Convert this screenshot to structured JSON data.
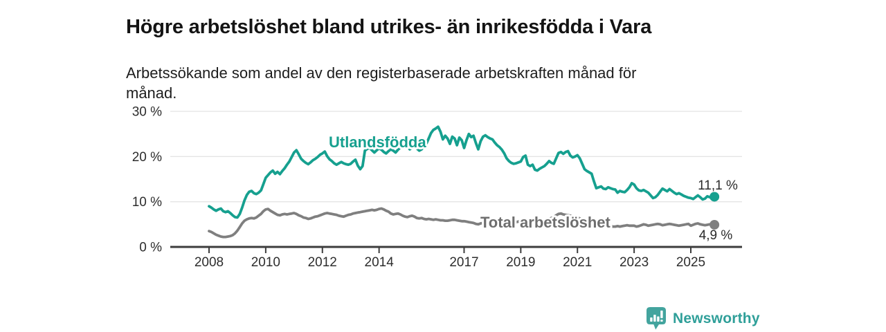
{
  "header": {
    "title": "Högre arbetslöshet bland utrikes- än inrikesfödda i Vara",
    "subtitle_line1": "Arbetssökande som andel av den registerbaserade arbetskraften månad för",
    "subtitle_line2": "månad."
  },
  "chart_data": {
    "type": "line",
    "x_start_year": 2008,
    "x_step_months": 1,
    "xlabel": "",
    "ylabel": "",
    "ylim": [
      0,
      30
    ],
    "grid": "horizontal",
    "legend_position": "inline-labels",
    "y_ticks": [
      {
        "value": 0,
        "label": "0 %"
      },
      {
        "value": 10,
        "label": "10 %"
      },
      {
        "value": 20,
        "label": "20 %"
      },
      {
        "value": 30,
        "label": "30 %"
      }
    ],
    "x_ticks": [
      {
        "value": 2008,
        "label": "2008"
      },
      {
        "value": 2010,
        "label": "2010"
      },
      {
        "value": 2012,
        "label": "2012"
      },
      {
        "value": 2014,
        "label": "2014"
      },
      {
        "value": 2017,
        "label": "2017"
      },
      {
        "value": 2019,
        "label": "2019"
      },
      {
        "value": 2021,
        "label": "2021"
      },
      {
        "value": 2023,
        "label": "2023"
      },
      {
        "value": 2025,
        "label": "2025"
      }
    ],
    "series": [
      {
        "name": "Total arbetslöshet",
        "color": "#7f7f7f",
        "label_color": "#6e6e6e",
        "end_label": "4,9 %",
        "end_value": 4.9,
        "values": [
          3.5,
          3.3,
          3.0,
          2.7,
          2.5,
          2.3,
          2.2,
          2.2,
          2.3,
          2.4,
          2.6,
          3.0,
          3.6,
          4.4,
          5.2,
          5.8,
          6.1,
          6.3,
          6.4,
          6.3,
          6.5,
          6.9,
          7.3,
          7.9,
          8.3,
          8.4,
          8.0,
          7.7,
          7.4,
          7.1,
          7.0,
          7.2,
          7.3,
          7.2,
          7.3,
          7.4,
          7.5,
          7.3,
          7.0,
          6.8,
          6.5,
          6.4,
          6.2,
          6.3,
          6.5,
          6.7,
          6.8,
          7.0,
          7.2,
          7.4,
          7.5,
          7.4,
          7.3,
          7.2,
          7.1,
          6.9,
          6.8,
          6.7,
          6.9,
          7.1,
          7.2,
          7.4,
          7.5,
          7.6,
          7.7,
          7.8,
          7.9,
          8.0,
          8.1,
          8.2,
          8.1,
          8.2,
          8.4,
          8.5,
          8.3,
          8.0,
          7.8,
          7.4,
          7.2,
          7.3,
          7.4,
          7.2,
          6.9,
          6.7,
          6.6,
          6.8,
          6.9,
          6.7,
          6.4,
          6.3,
          6.4,
          6.2,
          6.1,
          6.2,
          6.1,
          6.0,
          6.1,
          6.0,
          5.9,
          5.9,
          5.8,
          5.8,
          5.9,
          6.0,
          6.0,
          5.9,
          5.8,
          5.7,
          5.7,
          5.6,
          5.5,
          5.4,
          5.3,
          5.1,
          5.0,
          5.2,
          5.3,
          5.4,
          5.4,
          5.3,
          5.4,
          5.5,
          5.4,
          5.3,
          5.2,
          5.1,
          5.1,
          5.2,
          5.3,
          5.4,
          5.5,
          5.6,
          5.7,
          5.8,
          5.7,
          5.6,
          5.5,
          5.6,
          5.5,
          5.6,
          5.7,
          5.8,
          5.9,
          6.0,
          6.2,
          6.4,
          6.6,
          7.0,
          7.3,
          7.4,
          7.2,
          7.1,
          7.0,
          6.9,
          6.8,
          6.7,
          6.5,
          6.3,
          6.1,
          5.9,
          5.7,
          5.5,
          5.3,
          5.1,
          4.9,
          4.8,
          4.7,
          4.6,
          4.6,
          4.5,
          4.6,
          4.5,
          4.5,
          4.6,
          4.5,
          4.6,
          4.7,
          4.8,
          4.7,
          4.7,
          4.7,
          4.5,
          4.6,
          4.8,
          5.0,
          4.9,
          4.7,
          4.8,
          4.9,
          5.0,
          5.1,
          5.0,
          4.8,
          4.9,
          5.0,
          5.1,
          5.0,
          4.9,
          4.8,
          4.7,
          4.8,
          4.9,
          5.0,
          5.1,
          4.7,
          4.9,
          5.1,
          5.2,
          5.0,
          4.9,
          4.8,
          4.9,
          5.0,
          4.9,
          4.9
        ]
      },
      {
        "name": "Utlandsfödda",
        "color": "#16a08f",
        "label_color": "#16a08f",
        "end_label": "11,1 %",
        "end_value": 11.1,
        "values": [
          9.0,
          8.7,
          8.3,
          8.0,
          8.3,
          8.5,
          7.9,
          7.7,
          7.9,
          7.5,
          7.0,
          6.6,
          6.5,
          7.3,
          8.7,
          10.3,
          11.5,
          12.2,
          12.4,
          11.9,
          11.7,
          12.0,
          12.5,
          13.9,
          15.3,
          15.9,
          16.5,
          16.9,
          16.2,
          16.6,
          16.1,
          16.8,
          17.4,
          18.2,
          18.9,
          19.9,
          20.9,
          21.4,
          20.5,
          19.5,
          19.0,
          18.6,
          18.3,
          18.7,
          19.2,
          19.5,
          19.9,
          20.4,
          20.7,
          21.1,
          20.1,
          19.4,
          19.0,
          18.5,
          18.2,
          18.5,
          18.8,
          18.5,
          18.3,
          18.2,
          18.4,
          18.9,
          19.3,
          18.0,
          17.2,
          17.9,
          21.3,
          21.7,
          21.9,
          21.4,
          20.9,
          21.4,
          21.8,
          21.5,
          21.0,
          20.7,
          21.2,
          21.6,
          21.3,
          20.9,
          21.5,
          22.0,
          22.2,
          22.5,
          22.1,
          21.6,
          22.0,
          22.4,
          21.8,
          21.3,
          21.6,
          22.2,
          22.8,
          24.0,
          25.2,
          25.9,
          26.2,
          26.6,
          25.5,
          23.8,
          24.6,
          24.0,
          22.8,
          24.4,
          24.0,
          22.5,
          24.2,
          23.6,
          21.9,
          23.6,
          25.0,
          24.3,
          24.6,
          23.0,
          21.6,
          23.4,
          24.4,
          24.7,
          24.3,
          24.0,
          23.8,
          23.1,
          22.5,
          22.1,
          21.5,
          20.7,
          19.6,
          19.0,
          18.6,
          18.4,
          18.5,
          18.7,
          18.9,
          19.9,
          20.2,
          18.2,
          17.9,
          18.2,
          17.1,
          16.9,
          17.3,
          17.6,
          17.9,
          18.4,
          19.0,
          18.6,
          18.4,
          19.6,
          20.8,
          21.0,
          20.6,
          21.0,
          21.2,
          20.2,
          19.8,
          20.0,
          20.3,
          19.6,
          18.4,
          17.2,
          16.8,
          16.5,
          16.2,
          14.5,
          13.0,
          13.2,
          13.4,
          12.9,
          12.8,
          13.2,
          13.0,
          12.8,
          12.7,
          12.0,
          12.4,
          12.2,
          12.1,
          12.6,
          13.2,
          14.1,
          13.8,
          13.0,
          12.5,
          12.4,
          12.6,
          12.3,
          12.0,
          11.4,
          10.8,
          11.0,
          11.5,
          12.2,
          12.9,
          12.6,
          12.3,
          12.8,
          12.4,
          12.0,
          11.7,
          11.9,
          11.6,
          11.3,
          11.1,
          10.9,
          10.8,
          10.6,
          11.0,
          11.4,
          11.0,
          10.5,
          10.7,
          11.2,
          11.0,
          10.8,
          11.1
        ]
      }
    ]
  },
  "footer": {
    "brand": "Newsworthy",
    "brand_color": "#2f9f99",
    "logo_color": "#43a49e"
  },
  "colors": {
    "grid": "#e4e4e4",
    "axis": "#3c3c3c",
    "background": "#ffffff"
  }
}
